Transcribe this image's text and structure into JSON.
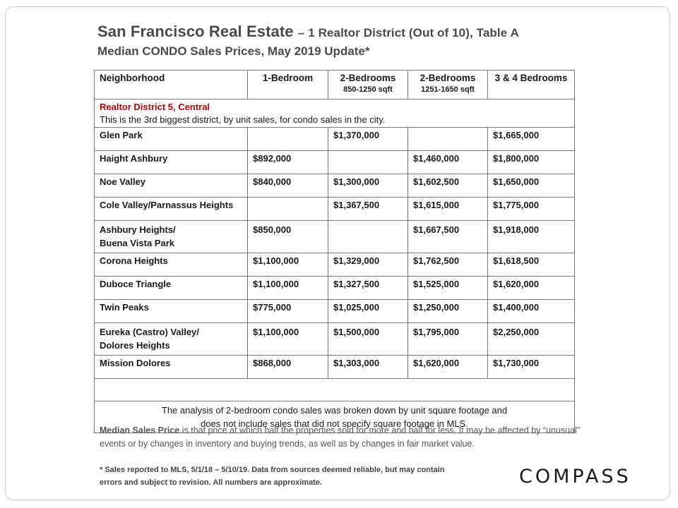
{
  "title": {
    "main": "San Francisco Real Estate",
    "sub": "– 1 Realtor District (Out of 10), Table A",
    "line2": "Median CONDO Sales Prices, May 2019 Update*"
  },
  "table": {
    "headers": [
      {
        "label": "Neighborhood",
        "sqft": ""
      },
      {
        "label": "1-Bedroom",
        "sqft": ""
      },
      {
        "label": "2-Bedrooms",
        "sqft": "850-1250 sqft"
      },
      {
        "label": "2-Bedrooms",
        "sqft": "1251-1650 sqft"
      },
      {
        "label": "3 & 4 Bedrooms",
        "sqft": ""
      }
    ],
    "district_name": "Realtor District 5, Central",
    "district_desc": "This is the 3rd biggest district, by unit sales, for condo sales in the city.",
    "rows": [
      {
        "neighborhood": "Glen Park",
        "bed1": "",
        "bed2a": "$1,370,000",
        "bed2b": "",
        "bed34": "$1,665,000"
      },
      {
        "neighborhood": "Haight Ashbury",
        "bed1": "$892,000",
        "bed2a": "",
        "bed2b": "$1,460,000",
        "bed34": "$1,800,000"
      },
      {
        "neighborhood": "Noe Valley",
        "bed1": "$840,000",
        "bed2a": "$1,300,000",
        "bed2b": "$1,602,500",
        "bed34": "$1,650,000"
      },
      {
        "neighborhood": "Cole Valley/Parnassus Heights",
        "bed1": "",
        "bed2a": "$1,367,500",
        "bed2b": "$1,615,000",
        "bed34": "$1,775,000"
      },
      {
        "neighborhood": "Ashbury Heights/",
        "neighborhood2": "Buena Vista Park",
        "bed1": "$850,000",
        "bed2a": "",
        "bed2b": "$1,667,500",
        "bed34": "$1,918,000"
      },
      {
        "neighborhood": "Corona Heights",
        "bed1": "$1,100,000",
        "bed2a": "$1,329,000",
        "bed2b": "$1,762,500",
        "bed34": "$1,618,500"
      },
      {
        "neighborhood": "Duboce Triangle",
        "bed1": "$1,100,000",
        "bed2a": "$1,327,500",
        "bed2b": "$1,525,000",
        "bed34": "$1,620,000"
      },
      {
        "neighborhood": "Twin Peaks",
        "bed1": "$775,000",
        "bed2a": "$1,025,000",
        "bed2b": "$1,250,000",
        "bed34": "$1,400,000"
      },
      {
        "neighborhood": "Eureka (Castro) Valley/",
        "neighborhood2": "Dolores Heights",
        "bed1": "$1,100,000",
        "bed2a": "$1,500,000",
        "bed2b": "$1,795,000",
        "bed34": "$2,250,000"
      },
      {
        "neighborhood": "Mission Dolores",
        "bed1": "$868,000",
        "bed2a": "$1,303,000",
        "bed2b": "$1,620,000",
        "bed34": "$1,730,000"
      }
    ],
    "note_line1": "The analysis of 2-bedroom condo sales was broken down by unit square footage and",
    "note_line2": "does not include sales that did not specify square footage in MLS."
  },
  "median_note": {
    "bold": "Median Sales Price",
    "rest": " is that price at which half the properties sold for more and half for less. It may be affected by “unusual” events or by changes in inventory and buying trends, as well as by changes in fair market value."
  },
  "footnote": {
    "line1": "* Sales reported to MLS, 5/1/18 – 5/10/19. Data from sources deemed reliable, but may contain",
    "line2": "errors and subject to revision.  All numbers are approximate."
  },
  "logo": "COMPASS",
  "colors": {
    "district_accent": "#c00000",
    "title": "#4a4a4a"
  }
}
